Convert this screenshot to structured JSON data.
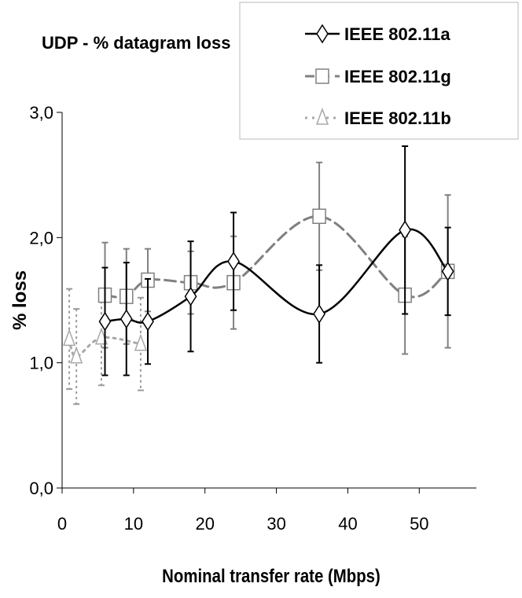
{
  "chart_data": {
    "type": "line",
    "title": "UDP - % datagram loss",
    "xlabel": "Nominal transfer rate (Mbps)",
    "ylabel": "% loss",
    "xlim": [
      0,
      58
    ],
    "ylim": [
      0,
      3
    ],
    "xticks": [
      0,
      10,
      20,
      30,
      40,
      50
    ],
    "xtick_labels": [
      "0",
      "10",
      "20",
      "30",
      "40",
      "50"
    ],
    "yticks": [
      0,
      1,
      2,
      3
    ],
    "ytick_labels": [
      "0,0",
      "1,0",
      "2,0",
      "3,0"
    ],
    "grid": false,
    "legend_position": "top-right",
    "series": [
      {
        "name": "IEEE 802.11a",
        "marker": "diamond",
        "line_style": "solid",
        "color": "#000000",
        "x": [
          6,
          9,
          12,
          18,
          24,
          36,
          48,
          54
        ],
        "y": [
          1.33,
          1.35,
          1.33,
          1.53,
          1.81,
          1.39,
          2.06,
          1.73
        ],
        "error": [
          0.43,
          0.45,
          0.34,
          0.44,
          0.39,
          0.39,
          0.67,
          0.35
        ]
      },
      {
        "name": "IEEE 802.11g",
        "marker": "square",
        "line_style": "dashed",
        "color": "#808080",
        "x": [
          6,
          9,
          12,
          18,
          24,
          36,
          48,
          54
        ],
        "y": [
          1.54,
          1.53,
          1.66,
          1.64,
          1.64,
          2.17,
          1.54,
          1.73
        ],
        "error": [
          0.42,
          0.38,
          0.25,
          0.25,
          0.37,
          0.43,
          0.47,
          0.61
        ]
      },
      {
        "name": "IEEE 802.11b",
        "marker": "triangle",
        "line_style": "dotted",
        "color": "#a0a0a0",
        "x": [
          1,
          2,
          5.5,
          11
        ],
        "y": [
          1.19,
          1.05,
          1.2,
          1.15
        ],
        "error": [
          0.4,
          0.38,
          0.38,
          0.37
        ]
      }
    ]
  }
}
